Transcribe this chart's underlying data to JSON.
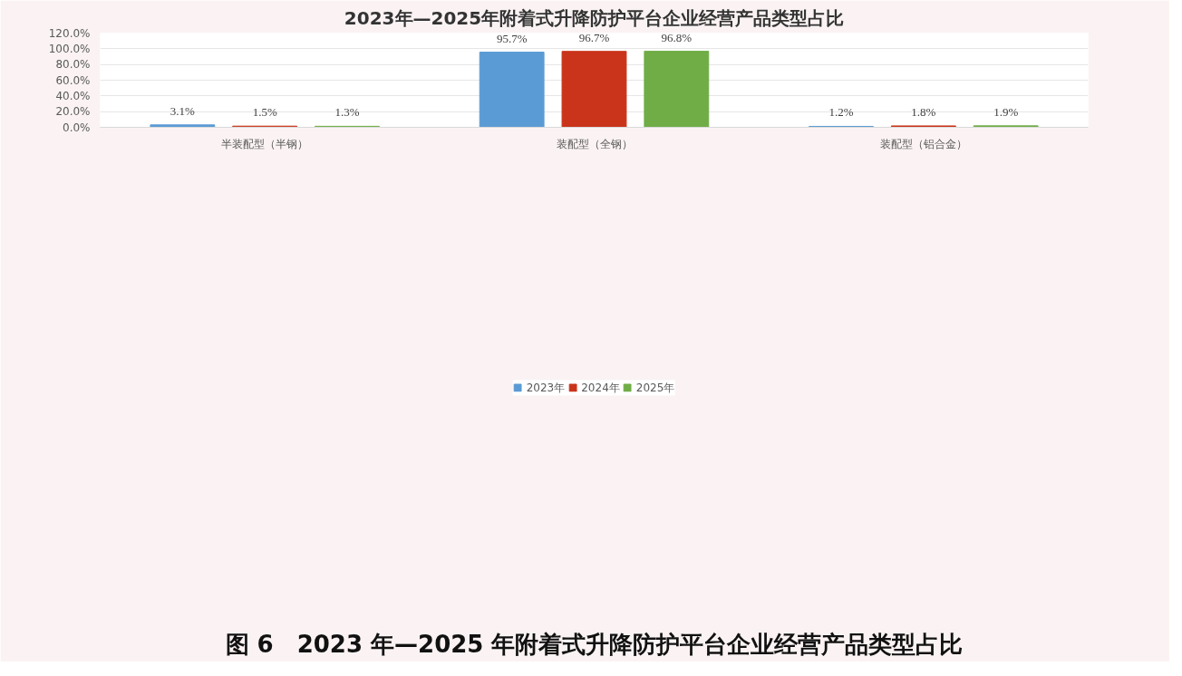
{
  "chart_data": {
    "type": "bar",
    "title": "2023年—2025年附着式升降防护平台企业经营产品类型占比",
    "categories": [
      "半装配型（半钢）",
      "装配型（全钢）",
      "装配型（铝合金）"
    ],
    "series": [
      {
        "name": "2023年",
        "color": "#5b9bd5",
        "values": [
          3.1,
          95.7,
          1.2
        ],
        "value_labels": [
          "3.1%",
          "95.7%",
          "1.2%"
        ]
      },
      {
        "name": "2024年",
        "color": "#c9341a",
        "values": [
          1.5,
          96.7,
          1.8
        ],
        "value_labels": [
          "1.5%",
          "96.7%",
          "1.8%"
        ]
      },
      {
        "name": "2025年",
        "color": "#70ad47",
        "values": [
          1.3,
          96.8,
          1.9
        ],
        "value_labels": [
          "1.3%",
          "96.8%",
          "1.9%"
        ]
      }
    ],
    "ylim": [
      0,
      120
    ],
    "yticks": [
      {
        "value": 0,
        "label": "0.0%"
      },
      {
        "value": 20,
        "label": "20.0%"
      },
      {
        "value": 40,
        "label": "40.0%"
      },
      {
        "value": 60,
        "label": "60.0%"
      },
      {
        "value": 80,
        "label": "80.0%"
      },
      {
        "value": 100,
        "label": "100.0%"
      },
      {
        "value": 120,
        "label": "120.0%"
      }
    ],
    "grid": "y",
    "legend": "bottom",
    "annotations": [
      "图 6　2023 年—2025 年附着式升降防护平台企业经营产品类型占比"
    ]
  }
}
